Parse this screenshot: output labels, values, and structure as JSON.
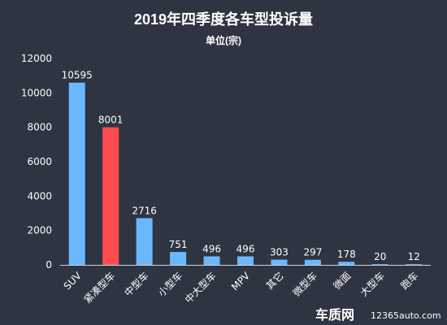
{
  "chart_data": {
    "type": "bar",
    "title": "2019年四季度各车型投诉量",
    "subtitle": "单位(宗)",
    "categories": [
      "SUV",
      "紧凑型车",
      "中型车",
      "小型车",
      "中大型车",
      "MPV",
      "其它",
      "微型车",
      "微面",
      "大型车",
      "跑车"
    ],
    "values": [
      10595,
      8001,
      2716,
      751,
      496,
      496,
      303,
      297,
      178,
      20,
      12
    ],
    "highlight_index": 1,
    "ylim": [
      0,
      12000
    ],
    "yticks": [
      "0",
      "2000",
      "4000",
      "6000",
      "8000",
      "10000",
      "12000"
    ],
    "grid": false,
    "colors": {
      "bar": "#6bb8ff",
      "highlight": "#ff4d4f",
      "background": "#2e3442",
      "axis": "#cfd3da"
    }
  },
  "watermark": {
    "brand": "车质网",
    "url": "12365auto.com"
  }
}
